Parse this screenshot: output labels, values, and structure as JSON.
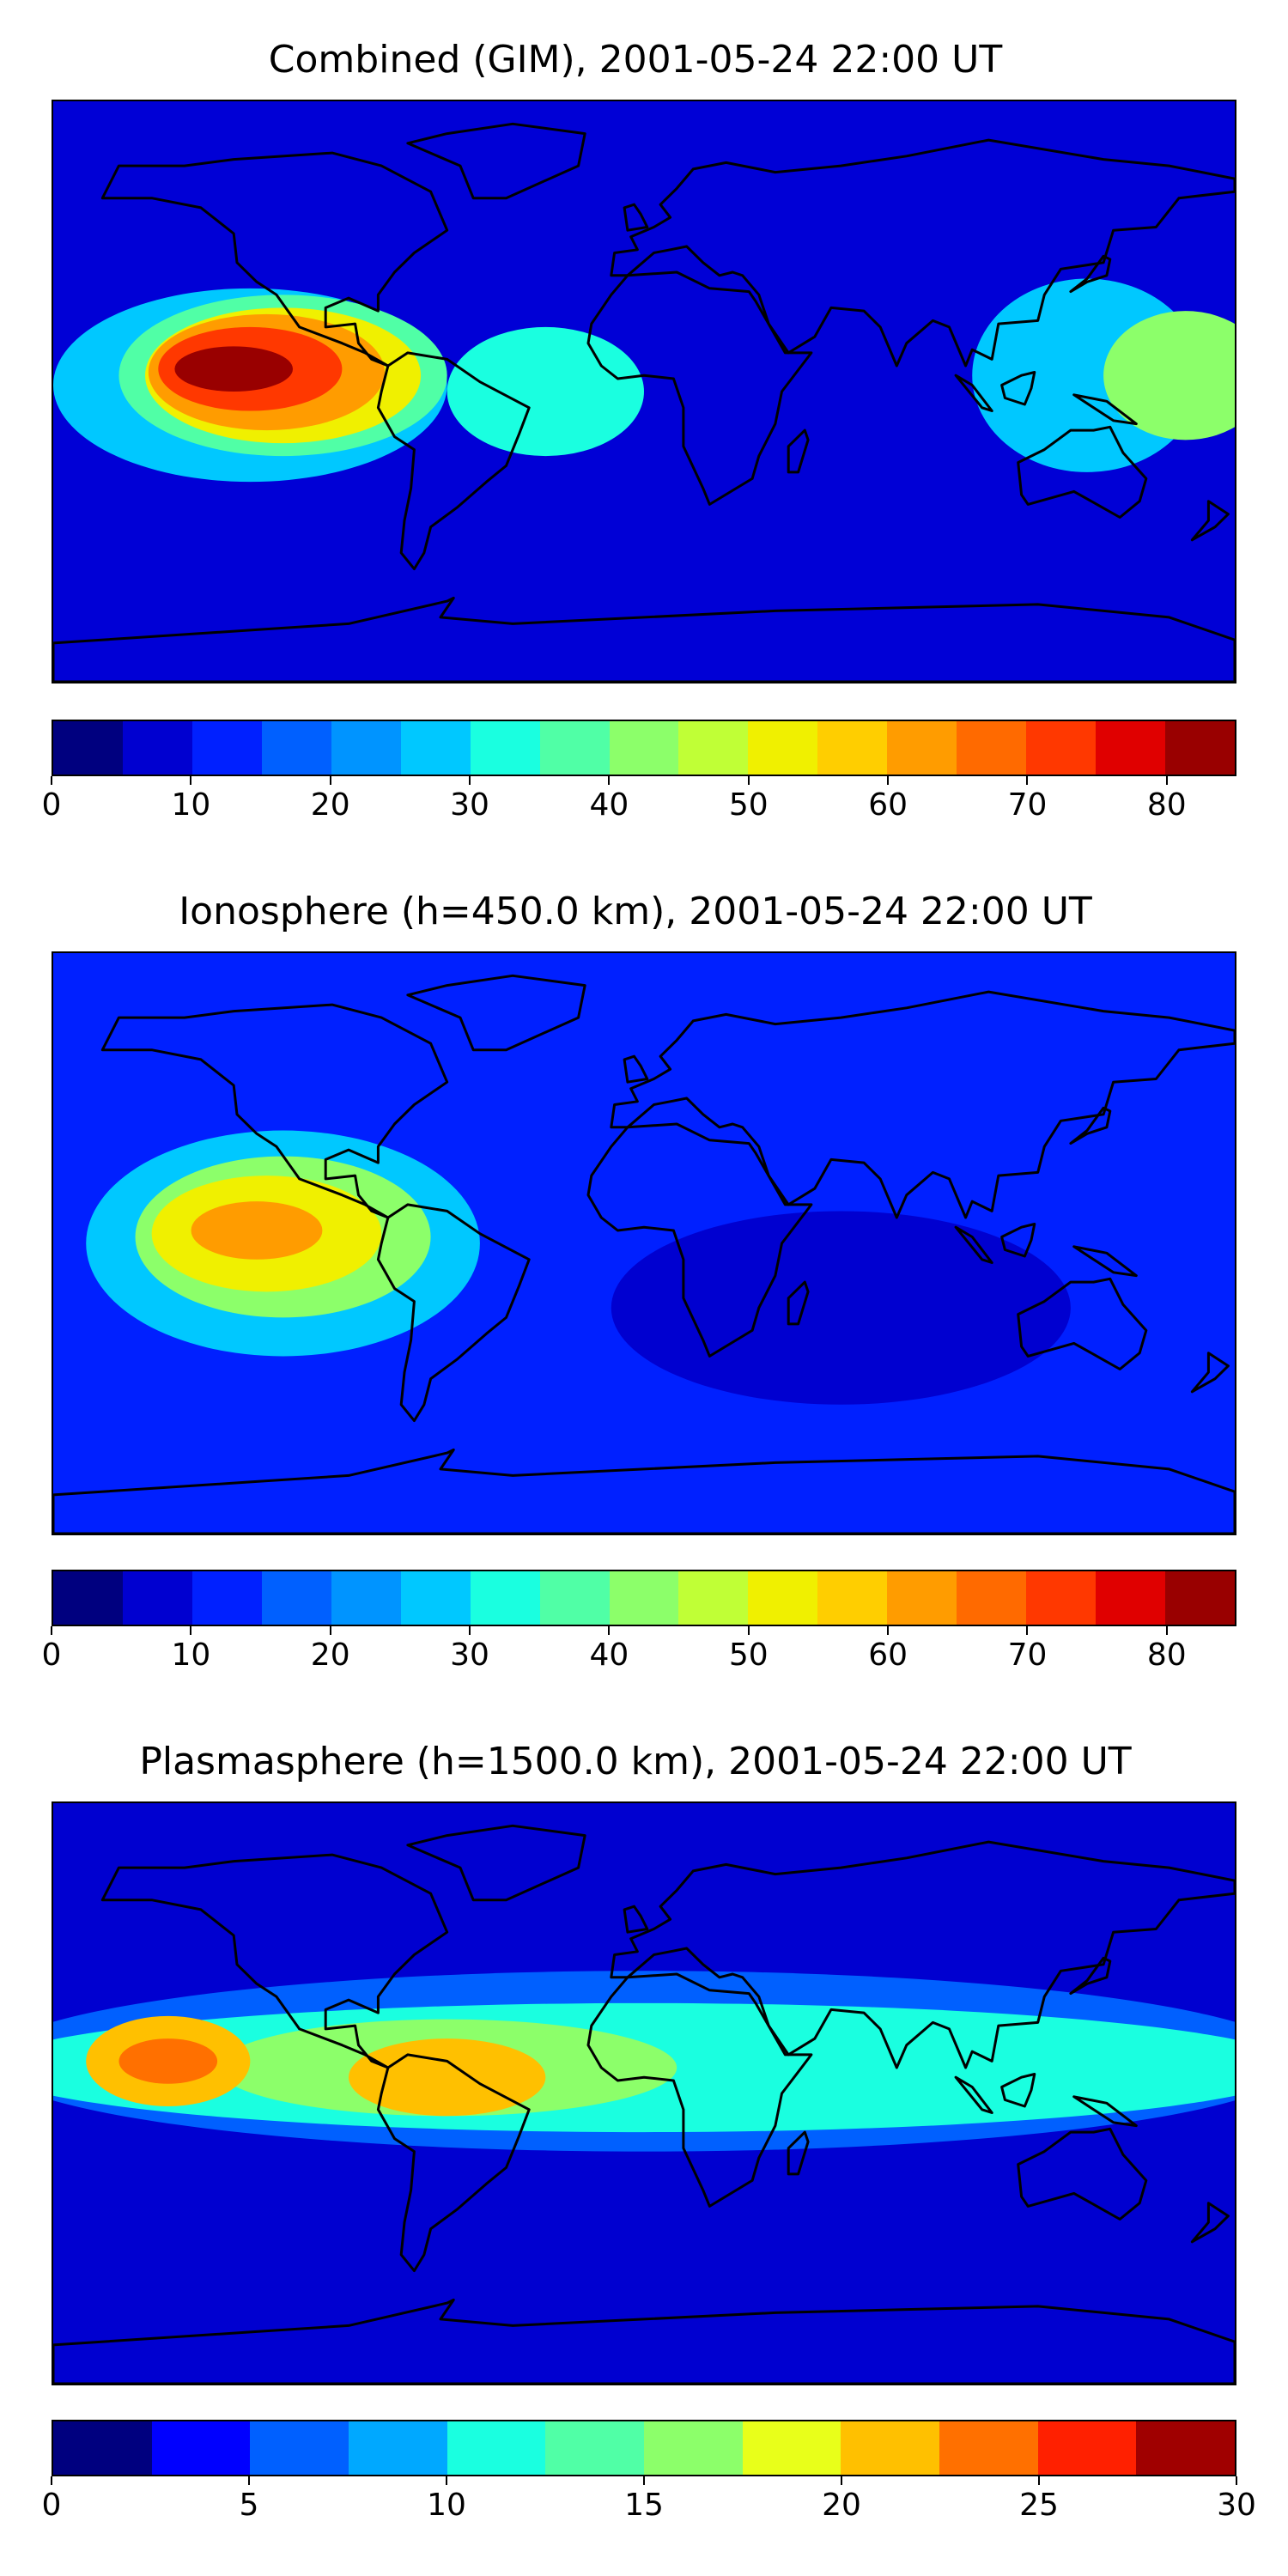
{
  "panels": [
    {
      "title": "Combined (GIM), 2001-05-24 22:00 UT",
      "colorbar": {
        "min": 0,
        "max": 85,
        "step": 5,
        "ticks": [
          "0",
          "10",
          "20",
          "30",
          "40",
          "50",
          "60",
          "70",
          "80"
        ],
        "colors": [
          "#00007f",
          "#0000d0",
          "#0020ff",
          "#0060ff",
          "#0094ff",
          "#00c8ff",
          "#1affe0",
          "#50ffa6",
          "#8cff6a",
          "#c0ff36",
          "#f0f000",
          "#ffce00",
          "#ff9c00",
          "#ff6a00",
          "#ff3800",
          "#e00000",
          "#990000"
        ]
      },
      "map_field": {
        "background": "#0000d6",
        "blobs": [
          {
            "lon": -120,
            "lat": 2,
            "rx": 60,
            "ry": 30,
            "color": "#00c8ff"
          },
          {
            "lon": 135,
            "lat": 5,
            "rx": 35,
            "ry": 30,
            "color": "#00c8ff"
          },
          {
            "lon": -30,
            "lat": 0,
            "rx": 30,
            "ry": 20,
            "color": "#1affe0"
          },
          {
            "lon": -110,
            "lat": 5,
            "rx": 50,
            "ry": 25,
            "color": "#50ffa6"
          },
          {
            "lon": 165,
            "lat": 5,
            "rx": 25,
            "ry": 20,
            "color": "#8cff6a"
          },
          {
            "lon": -110,
            "lat": 5,
            "rx": 42,
            "ry": 21,
            "color": "#f0f000"
          },
          {
            "lon": -115,
            "lat": 6,
            "rx": 36,
            "ry": 18,
            "color": "#ff9c00"
          },
          {
            "lon": -120,
            "lat": 7,
            "rx": 28,
            "ry": 13,
            "color": "#ff3800"
          },
          {
            "lon": -125,
            "lat": 7,
            "rx": 18,
            "ry": 7,
            "color": "#990000"
          }
        ]
      }
    },
    {
      "title": "Ionosphere  (h=450.0 km), 2001-05-24 22:00 UT",
      "colorbar": {
        "min": 0,
        "max": 85,
        "step": 5,
        "ticks": [
          "0",
          "10",
          "20",
          "30",
          "40",
          "50",
          "60",
          "70",
          "80"
        ],
        "colors": [
          "#00007f",
          "#0000d0",
          "#0020ff",
          "#0060ff",
          "#0094ff",
          "#00c8ff",
          "#1affe0",
          "#50ffa6",
          "#8cff6a",
          "#c0ff36",
          "#f0f000",
          "#ffce00",
          "#ff9c00",
          "#ff6a00",
          "#ff3800",
          "#e00000",
          "#990000"
        ]
      },
      "map_field": {
        "background": "#0020ff",
        "blobs": [
          {
            "lon": 60,
            "lat": -20,
            "rx": 70,
            "ry": 30,
            "color": "#0000d0"
          },
          {
            "lon": -110,
            "lat": 0,
            "rx": 60,
            "ry": 35,
            "color": "#00c8ff"
          },
          {
            "lon": -110,
            "lat": 2,
            "rx": 45,
            "ry": 25,
            "color": "#8cff6a"
          },
          {
            "lon": -115,
            "lat": 3,
            "rx": 35,
            "ry": 18,
            "color": "#f0f000"
          },
          {
            "lon": -118,
            "lat": 4,
            "rx": 20,
            "ry": 9,
            "color": "#ff9c00"
          }
        ]
      }
    },
    {
      "title": "Plasmasphere (h=1500.0 km), 2001-05-24 22:00 UT",
      "colorbar": {
        "min": 0,
        "max": 30,
        "step": 2.5,
        "ticks": [
          "0",
          "5",
          "10",
          "15",
          "20",
          "25",
          "30"
        ],
        "colors": [
          "#00007f",
          "#0000ff",
          "#0060ff",
          "#00a8ff",
          "#1affe0",
          "#50ffa6",
          "#8cff6a",
          "#e8ff1a",
          "#ffc000",
          "#ff7000",
          "#ff2000",
          "#a00000"
        ]
      },
      "map_field": {
        "background": "#0000d0",
        "blobs": [
          {
            "lon": 0,
            "lat": 10,
            "rx": 200,
            "ry": 28,
            "color": "#0060ff"
          },
          {
            "lon": 0,
            "lat": 8,
            "rx": 200,
            "ry": 20,
            "color": "#1affe0"
          },
          {
            "lon": -60,
            "lat": 8,
            "rx": 70,
            "ry": 15,
            "color": "#8cff6a"
          },
          {
            "lon": -145,
            "lat": 10,
            "rx": 25,
            "ry": 14,
            "color": "#ffc000"
          },
          {
            "lon": -60,
            "lat": 5,
            "rx": 30,
            "ry": 12,
            "color": "#ffc000"
          },
          {
            "lon": -145,
            "lat": 10,
            "rx": 15,
            "ry": 7,
            "color": "#ff7000"
          }
        ]
      }
    }
  ]
}
